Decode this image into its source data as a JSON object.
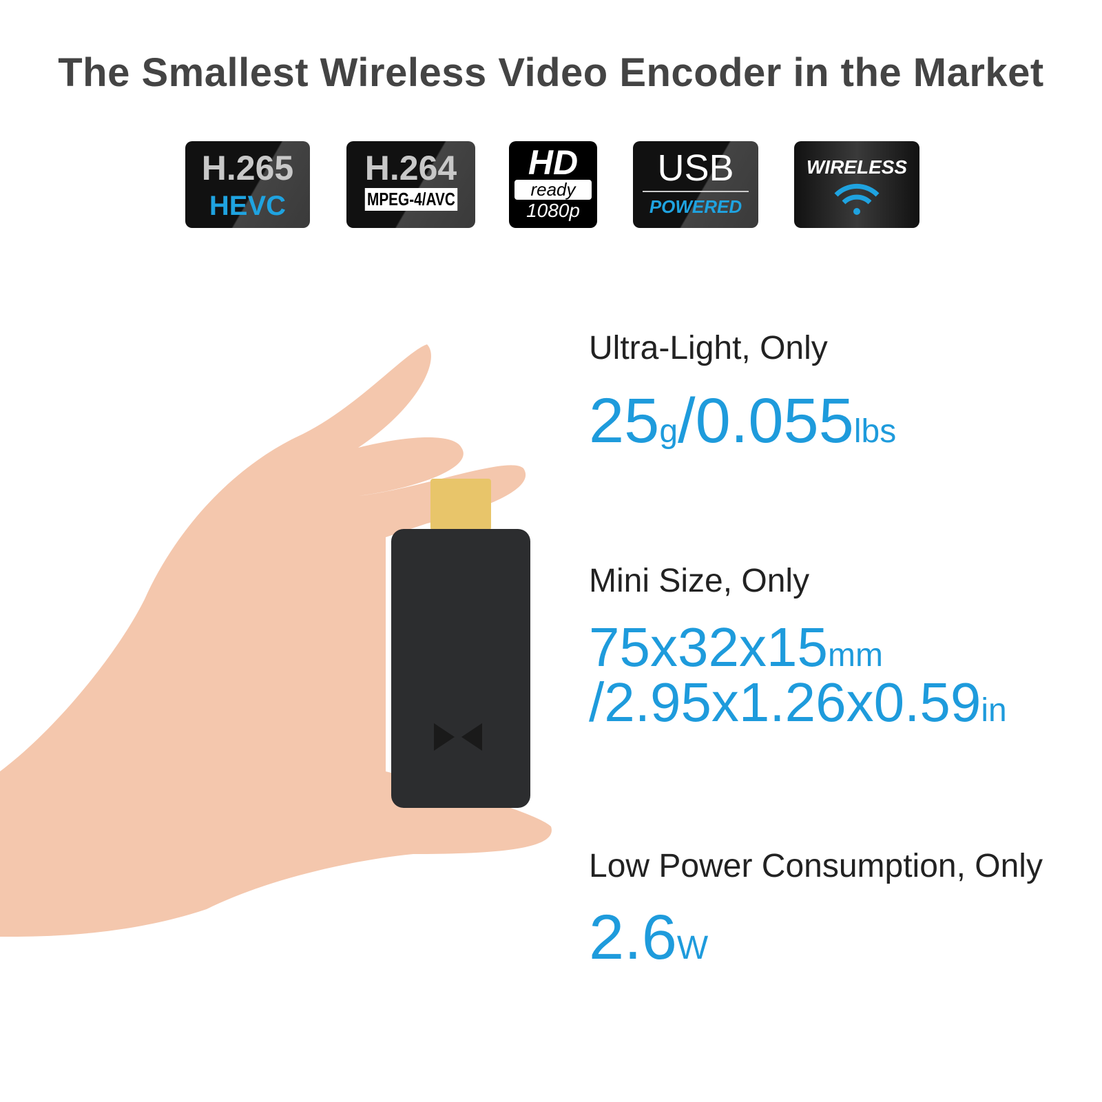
{
  "title": "The Smallest Wireless Video Encoder in the Market",
  "badges": [
    {
      "main": "H.265",
      "sub": "HEVC"
    },
    {
      "main": "H.264",
      "sub": "MPEG-4/AVC"
    },
    {
      "main": "HD",
      "sub": "ready",
      "extra": "1080p"
    },
    {
      "main": "USB",
      "sub": "POWERED"
    },
    {
      "main": "WIRELESS",
      "icon": "wifi-icon"
    }
  ],
  "specs": [
    {
      "label": "Ultra-Light, Only",
      "value": "25",
      "unit": "g",
      "value2": "/0.055",
      "unit2": "lbs"
    },
    {
      "label": "Mini Size, Only",
      "value": "75x32x15",
      "unit": "mm",
      "value2": "/2.95x1.26x0.59",
      "unit2": "in"
    },
    {
      "label": "Low Power Consumption, Only",
      "value": "2.6",
      "unit": "W"
    }
  ],
  "colors": {
    "accent": "#1e9bdc",
    "title": "#444444",
    "badge": "#111111"
  }
}
